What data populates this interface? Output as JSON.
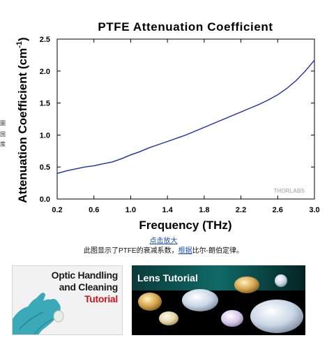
{
  "chart_data": {
    "type": "line",
    "title": "PTFE Attenuation Coefficient",
    "xlabel": "Frequency (THz)",
    "ylabel": "Attenuation Coefficient (cm",
    "ylabel_sup": "-1",
    "ylabel_close": ")",
    "xlim": [
      0.2,
      3.0
    ],
    "ylim": [
      0.0,
      2.5
    ],
    "xticks": [
      "0.2",
      "0.6",
      "1.0",
      "1.4",
      "1.8",
      "2.2",
      "2.6",
      "3.0"
    ],
    "yticks": [
      "0.0",
      "0.5",
      "1.0",
      "1.5",
      "2.0",
      "2.5"
    ],
    "grid": false,
    "watermark": "THORLABS",
    "line_color": "#1c2bb0",
    "series": [
      {
        "x": [
          0.2,
          0.3,
          0.4,
          0.5,
          0.6,
          0.7,
          0.8,
          0.9,
          1.0,
          1.1,
          1.2,
          1.3,
          1.4,
          1.5,
          1.6,
          1.7,
          1.8,
          1.9,
          2.0,
          2.1,
          2.2,
          2.3,
          2.4,
          2.5,
          2.6,
          2.7,
          2.8,
          2.9,
          3.0
        ],
        "y": [
          0.4,
          0.44,
          0.47,
          0.5,
          0.52,
          0.55,
          0.58,
          0.63,
          0.69,
          0.74,
          0.8,
          0.85,
          0.9,
          0.95,
          1.0,
          1.06,
          1.12,
          1.18,
          1.24,
          1.3,
          1.36,
          1.42,
          1.48,
          1.55,
          1.63,
          1.73,
          1.85,
          2.0,
          2.17
        ]
      }
    ]
  },
  "side_text": [
    "圖",
    "国",
    "度"
  ],
  "caption": {
    "link": "点击放大",
    "text_before": "此图显示了PTFE的衰减系数，",
    "text_link": "根据",
    "text_after": "比尔-朗伯定律。"
  },
  "cards": {
    "optic": {
      "line1": "Optic Handling",
      "line2": "and Cleaning",
      "line3": "Tutorial"
    },
    "lens": {
      "title": "Lens Tutorial"
    }
  }
}
